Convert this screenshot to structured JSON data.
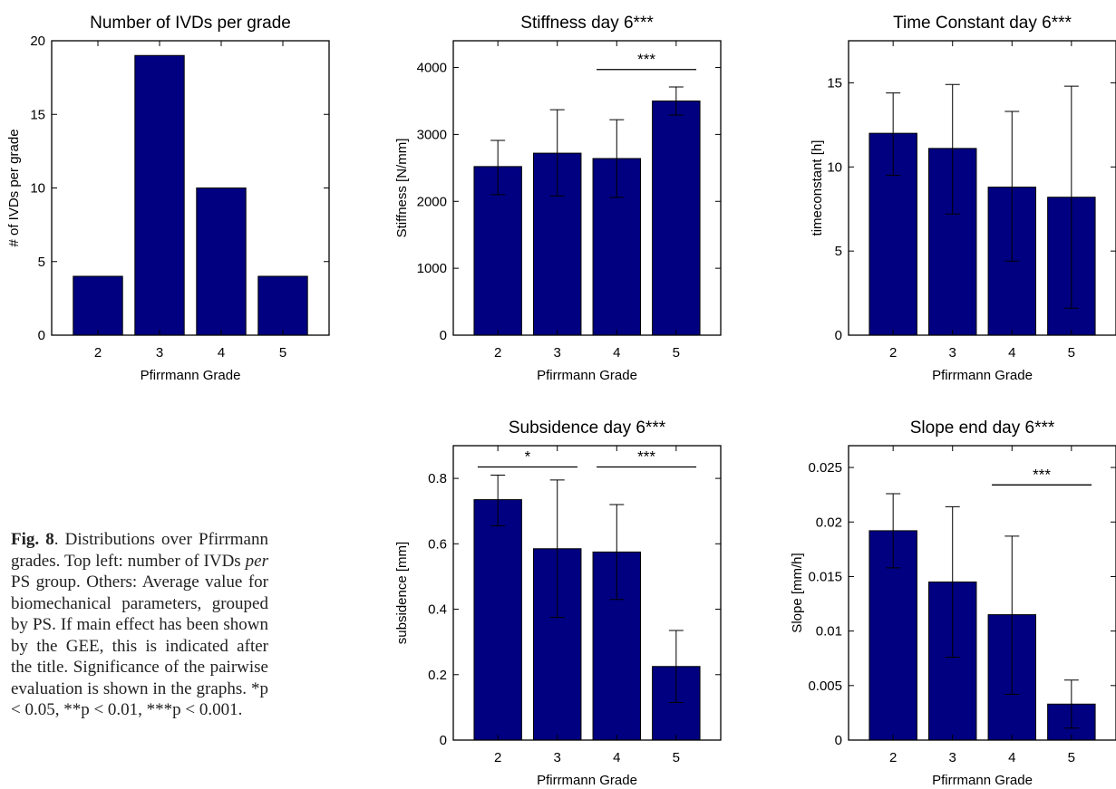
{
  "caption": {
    "label": "Fig. 8",
    "text_before_per": ". Distributions over Pfirrmann grades. Top left: number of IVDs ",
    "per": "per",
    "text_after_per": " PS group. Others: Average value for biomechanical parameters, grouped by PS. If main effect has been shown by the GEE, this is indicated after the title. Significance of the pairwise evaluation is shown in the graphs. ",
    "sig_line": "*p < 0.05, **p < 0.01, ***p < 0.001."
  },
  "colors": {
    "bar": "#000080",
    "axis": "#000000"
  },
  "chart_data": [
    {
      "type": "bar",
      "title": "Number of IVDs per grade",
      "xlabel": "Pfirrmann Grade",
      "ylabel": "# of IVDs per grade",
      "categories": [
        "2",
        "3",
        "4",
        "5"
      ],
      "values": [
        4,
        19,
        10,
        4
      ],
      "ylim": [
        0,
        20
      ],
      "yticks": [
        0,
        5,
        10,
        15,
        20
      ],
      "ytick_labels": [
        "0",
        "5",
        "10",
        "15",
        "20"
      ],
      "error_low": null,
      "error_high": null,
      "significance": []
    },
    {
      "type": "bar",
      "title": "Stiffness day 6***",
      "xlabel": "Pfirrmann Grade",
      "ylabel": "Stiffness [N/mm]",
      "categories": [
        "2",
        "3",
        "4",
        "5"
      ],
      "values": [
        2520,
        2720,
        2640,
        3500
      ],
      "error_low": [
        2100,
        2080,
        2060,
        3290
      ],
      "error_high": [
        2910,
        3370,
        3220,
        3710
      ],
      "ylim": [
        0,
        4400
      ],
      "yticks": [
        0,
        1000,
        2000,
        3000,
        4000
      ],
      "ytick_labels": [
        "0",
        "1000",
        "2000",
        "3000",
        "4000"
      ],
      "significance": [
        {
          "from": 2,
          "to": 3,
          "label": "***",
          "y": 3970
        }
      ]
    },
    {
      "type": "bar",
      "title": "Time Constant day 6***",
      "xlabel": "Pfirrmann Grade",
      "ylabel": "timeconstant [h]",
      "categories": [
        "2",
        "3",
        "4",
        "5"
      ],
      "values": [
        12.0,
        11.1,
        8.8,
        8.2
      ],
      "error_low": [
        9.5,
        7.2,
        4.4,
        1.6
      ],
      "error_high": [
        14.4,
        14.9,
        13.3,
        14.8
      ],
      "ylim": [
        0,
        17.5
      ],
      "yticks": [
        0,
        5,
        10,
        15
      ],
      "ytick_labels": [
        "0",
        "5",
        "10",
        "15"
      ],
      "significance": []
    },
    {
      "type": "bar",
      "title": "Subsidence day 6***",
      "xlabel": "Pfirrmann Grade",
      "ylabel": "subsidence [mm]",
      "categories": [
        "2",
        "3",
        "4",
        "5"
      ],
      "values": [
        0.735,
        0.585,
        0.575,
        0.225
      ],
      "error_low": [
        0.655,
        0.375,
        0.43,
        0.115
      ],
      "error_high": [
        0.81,
        0.795,
        0.72,
        0.335
      ],
      "ylim": [
        0,
        0.9
      ],
      "yticks": [
        0,
        0.2,
        0.4,
        0.6,
        0.8
      ],
      "ytick_labels": [
        "0",
        "0.2",
        "0.4",
        "0.6",
        "0.8"
      ],
      "significance": [
        {
          "from": 0,
          "to": 1,
          "label": "*",
          "y": 0.835
        },
        {
          "from": 2,
          "to": 3,
          "label": "***",
          "y": 0.835
        }
      ]
    },
    {
      "type": "bar",
      "title": "Slope end day 6***",
      "xlabel": "Pfirrmann Grade",
      "ylabel": "Slope [mm/h]",
      "categories": [
        "2",
        "3",
        "4",
        "5"
      ],
      "values": [
        0.0192,
        0.0145,
        0.0115,
        0.0033
      ],
      "error_low": [
        0.0158,
        0.0076,
        0.0042,
        0.0011
      ],
      "error_high": [
        0.0226,
        0.0214,
        0.0187,
        0.0055
      ],
      "ylim": [
        0,
        0.027
      ],
      "yticks": [
        0,
        0.005,
        0.01,
        0.015,
        0.02,
        0.025
      ],
      "ytick_labels": [
        "0",
        "0.005",
        "0.01",
        "0.015",
        "0.02",
        "0.025"
      ],
      "significance": [
        {
          "from": 2,
          "to": 3,
          "label": "***",
          "y": 0.0234
        }
      ]
    }
  ]
}
